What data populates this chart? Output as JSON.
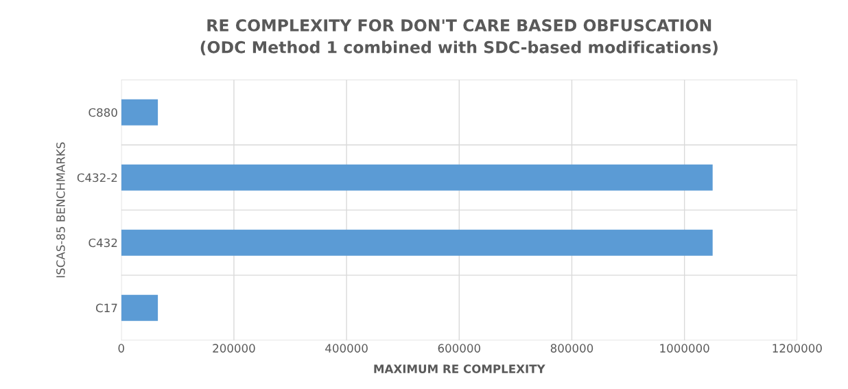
{
  "chart_data": {
    "type": "bar",
    "orientation": "horizontal",
    "title": "RE COMPLEXITY FOR DON'T CARE BASED OBFUSCATION\n(ODC Method 1 combined with SDC-based modifications)",
    "xlabel": "MAXIMUM RE COMPLEXITY",
    "ylabel": "ISCAS-85 BENCHMARKS",
    "categories": [
      "C880",
      "C432-2",
      "C432",
      "C17"
    ],
    "values": [
      65000,
      1050000,
      1050000,
      65000
    ],
    "color": "#5b9bd5",
    "xlim": [
      0,
      1200000
    ],
    "xticks": [
      0,
      200000,
      400000,
      600000,
      800000,
      1000000,
      1200000
    ],
    "grid": true
  }
}
